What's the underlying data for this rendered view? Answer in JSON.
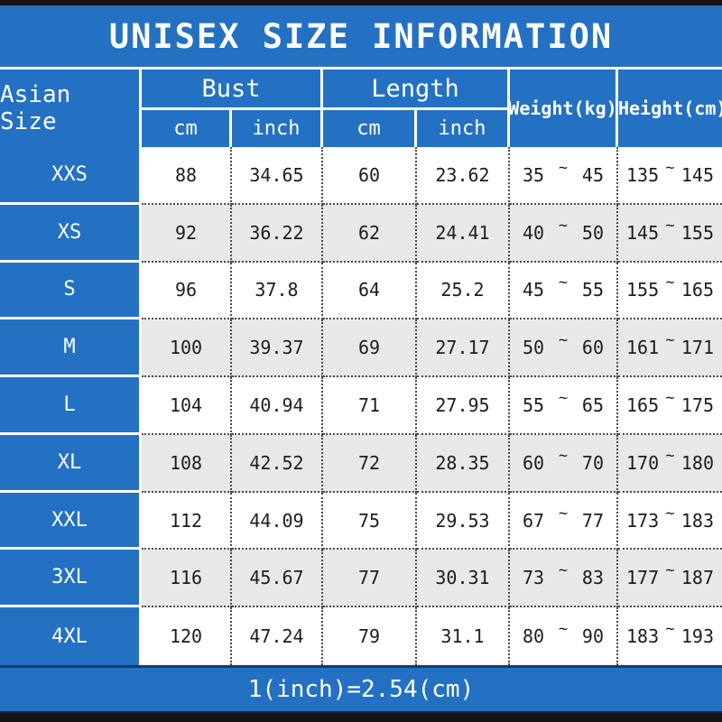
{
  "title": "UNISEX SIZE INFORMATION",
  "labels": {
    "asian_size": "Asian Size",
    "bust": "Bust",
    "length": "Length",
    "weight": "Weight(kg)",
    "height": "Height(cm)",
    "cm": "cm",
    "inch": "inch",
    "tilde": "~"
  },
  "rows": [
    {
      "size": "XXS",
      "bust_cm": "88",
      "bust_inch": "34.65",
      "length_cm": "60",
      "length_inch": "23.62",
      "weight_min": "35",
      "weight_max": "45",
      "height_min": "135",
      "height_max": "145"
    },
    {
      "size": "XS",
      "bust_cm": "92",
      "bust_inch": "36.22",
      "length_cm": "62",
      "length_inch": "24.41",
      "weight_min": "40",
      "weight_max": "50",
      "height_min": "145",
      "height_max": "155"
    },
    {
      "size": "S",
      "bust_cm": "96",
      "bust_inch": "37.8",
      "length_cm": "64",
      "length_inch": "25.2",
      "weight_min": "45",
      "weight_max": "55",
      "height_min": "155",
      "height_max": "165"
    },
    {
      "size": "M",
      "bust_cm": "100",
      "bust_inch": "39.37",
      "length_cm": "69",
      "length_inch": "27.17",
      "weight_min": "50",
      "weight_max": "60",
      "height_min": "161",
      "height_max": "171"
    },
    {
      "size": "L",
      "bust_cm": "104",
      "bust_inch": "40.94",
      "length_cm": "71",
      "length_inch": "27.95",
      "weight_min": "55",
      "weight_max": "65",
      "height_min": "165",
      "height_max": "175"
    },
    {
      "size": "XL",
      "bust_cm": "108",
      "bust_inch": "42.52",
      "length_cm": "72",
      "length_inch": "28.35",
      "weight_min": "60",
      "weight_max": "70",
      "height_min": "170",
      "height_max": "180"
    },
    {
      "size": "XXL",
      "bust_cm": "112",
      "bust_inch": "44.09",
      "length_cm": "75",
      "length_inch": "29.53",
      "weight_min": "67",
      "weight_max": "77",
      "height_min": "173",
      "height_max": "183"
    },
    {
      "size": "3XL",
      "bust_cm": "116",
      "bust_inch": "45.67",
      "length_cm": "77",
      "length_inch": "30.31",
      "weight_min": "73",
      "weight_max": "83",
      "height_min": "177",
      "height_max": "187"
    },
    {
      "size": "4XL",
      "bust_cm": "120",
      "bust_inch": "47.24",
      "length_cm": "79",
      "length_inch": "31.1",
      "weight_min": "80",
      "weight_max": "90",
      "height_min": "183",
      "height_max": "193"
    }
  ],
  "footer_note": "1(inch)=2.54(cm)",
  "colors": {
    "blue": "#2471c3",
    "alt_row_gray": "#e8e8e8",
    "bar_black": "#151515",
    "text": "#1d1d1d"
  },
  "chart_data": {
    "type": "table",
    "title": "UNISEX SIZE INFORMATION",
    "columns": [
      "Asian Size",
      "Bust cm",
      "Bust inch",
      "Length cm",
      "Length inch",
      "Weight(kg)",
      "Height(cm)"
    ],
    "rows": [
      [
        "XXS",
        88,
        34.65,
        60,
        23.62,
        "35~45",
        "135~145"
      ],
      [
        "XS",
        92,
        36.22,
        62,
        24.41,
        "40~50",
        "145~155"
      ],
      [
        "S",
        96,
        37.8,
        64,
        25.2,
        "45~55",
        "155~165"
      ],
      [
        "M",
        100,
        39.37,
        69,
        27.17,
        "50~60",
        "161~171"
      ],
      [
        "L",
        104,
        40.94,
        71,
        27.95,
        "55~65",
        "165~175"
      ],
      [
        "XL",
        108,
        42.52,
        72,
        28.35,
        "60~70",
        "170~180"
      ],
      [
        "XXL",
        112,
        44.09,
        75,
        29.53,
        "67~77",
        "173~183"
      ],
      [
        "3XL",
        116,
        45.67,
        77,
        30.31,
        "73~83",
        "177~187"
      ],
      [
        "4XL",
        120,
        47.24,
        79,
        31.1,
        "80~90",
        "183~193"
      ]
    ],
    "note": "1(inch)=2.54(cm)"
  }
}
